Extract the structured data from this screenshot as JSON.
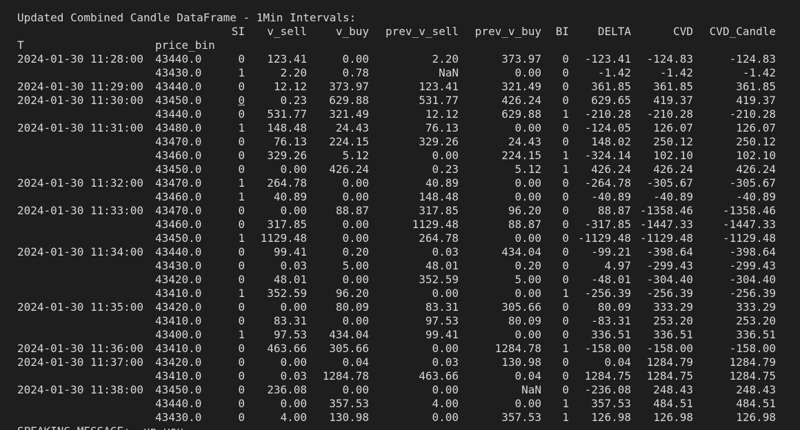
{
  "title": "Updated Combined Candle DataFrame - 1Min Intervals:",
  "columns": [
    "SI",
    "v_sell",
    "v_buy",
    "prev_v_sell",
    "prev_v_buy",
    "BI",
    "DELTA",
    "CVD",
    "CVD_Candle"
  ],
  "index_names": [
    "T",
    "price_bin"
  ],
  "rows": [
    {
      "t": "2024-01-30 11:28:00",
      "p": "43440.0",
      "si": "0",
      "vs": "123.41",
      "vb": "0.00",
      "pvs": "2.20",
      "pvb": "373.97",
      "bi": "0",
      "d": "-123.41",
      "cvd": "-124.83",
      "cc": "-124.83"
    },
    {
      "t": "",
      "p": "43430.0",
      "si": "1",
      "vs": "2.20",
      "vb": "0.78",
      "pvs": "NaN",
      "pvb": "0.00",
      "bi": "0",
      "d": "-1.42",
      "cvd": "-1.42",
      "cc": "-1.42"
    },
    {
      "t": "2024-01-30 11:29:00",
      "p": "43440.0",
      "si": "0",
      "vs": "12.12",
      "vb": "373.97",
      "pvs": "123.41",
      "pvb": "321.49",
      "bi": "0",
      "d": "361.85",
      "cvd": "361.85",
      "cc": "361.85"
    },
    {
      "t": "2024-01-30 11:30:00",
      "p": "43450.0",
      "si": "0",
      "vs": "0.23",
      "vb": "629.88",
      "pvs": "531.77",
      "pvb": "426.24",
      "bi": "0",
      "d": "629.65",
      "cvd": "419.37",
      "cc": "419.37"
    },
    {
      "t": "",
      "p": "43440.0",
      "si": "0",
      "vs": "531.77",
      "vb": "321.49",
      "pvs": "12.12",
      "pvb": "629.88",
      "bi": "1",
      "d": "-210.28",
      "cvd": "-210.28",
      "cc": "-210.28"
    },
    {
      "t": "2024-01-30 11:31:00",
      "p": "43480.0",
      "si": "1",
      "vs": "148.48",
      "vb": "24.43",
      "pvs": "76.13",
      "pvb": "0.00",
      "bi": "0",
      "d": "-124.05",
      "cvd": "126.07",
      "cc": "126.07"
    },
    {
      "t": "",
      "p": "43470.0",
      "si": "0",
      "vs": "76.13",
      "vb": "224.15",
      "pvs": "329.26",
      "pvb": "24.43",
      "bi": "0",
      "d": "148.02",
      "cvd": "250.12",
      "cc": "250.12"
    },
    {
      "t": "",
      "p": "43460.0",
      "si": "0",
      "vs": "329.26",
      "vb": "5.12",
      "pvs": "0.00",
      "pvb": "224.15",
      "bi": "1",
      "d": "-324.14",
      "cvd": "102.10",
      "cc": "102.10"
    },
    {
      "t": "",
      "p": "43450.0",
      "si": "0",
      "vs": "0.00",
      "vb": "426.24",
      "pvs": "0.23",
      "pvb": "5.12",
      "bi": "1",
      "d": "426.24",
      "cvd": "426.24",
      "cc": "426.24"
    },
    {
      "t": "2024-01-30 11:32:00",
      "p": "43470.0",
      "si": "1",
      "vs": "264.78",
      "vb": "0.00",
      "pvs": "40.89",
      "pvb": "0.00",
      "bi": "0",
      "d": "-264.78",
      "cvd": "-305.67",
      "cc": "-305.67"
    },
    {
      "t": "",
      "p": "43460.0",
      "si": "1",
      "vs": "40.89",
      "vb": "0.00",
      "pvs": "148.48",
      "pvb": "0.00",
      "bi": "0",
      "d": "-40.89",
      "cvd": "-40.89",
      "cc": "-40.89"
    },
    {
      "t": "2024-01-30 11:33:00",
      "p": "43470.0",
      "si": "0",
      "vs": "0.00",
      "vb": "88.87",
      "pvs": "317.85",
      "pvb": "96.20",
      "bi": "0",
      "d": "88.87",
      "cvd": "-1358.46",
      "cc": "-1358.46"
    },
    {
      "t": "",
      "p": "43460.0",
      "si": "0",
      "vs": "317.85",
      "vb": "0.00",
      "pvs": "1129.48",
      "pvb": "88.87",
      "bi": "0",
      "d": "-317.85",
      "cvd": "-1447.33",
      "cc": "-1447.33"
    },
    {
      "t": "",
      "p": "43450.0",
      "si": "1",
      "vs": "1129.48",
      "vb": "0.00",
      "pvs": "264.78",
      "pvb": "0.00",
      "bi": "0",
      "d": "-1129.48",
      "cvd": "-1129.48",
      "cc": "-1129.48"
    },
    {
      "t": "2024-01-30 11:34:00",
      "p": "43440.0",
      "si": "0",
      "vs": "99.41",
      "vb": "0.20",
      "pvs": "0.03",
      "pvb": "434.04",
      "bi": "0",
      "d": "-99.21",
      "cvd": "-398.64",
      "cc": "-398.64"
    },
    {
      "t": "",
      "p": "43430.0",
      "si": "0",
      "vs": "0.03",
      "vb": "5.00",
      "pvs": "48.01",
      "pvb": "0.20",
      "bi": "0",
      "d": "4.97",
      "cvd": "-299.43",
      "cc": "-299.43"
    },
    {
      "t": "",
      "p": "43420.0",
      "si": "0",
      "vs": "48.01",
      "vb": "0.00",
      "pvs": "352.59",
      "pvb": "5.00",
      "bi": "0",
      "d": "-48.01",
      "cvd": "-304.40",
      "cc": "-304.40"
    },
    {
      "t": "",
      "p": "43410.0",
      "si": "1",
      "vs": "352.59",
      "vb": "96.20",
      "pvs": "0.00",
      "pvb": "0.00",
      "bi": "1",
      "d": "-256.39",
      "cvd": "-256.39",
      "cc": "-256.39"
    },
    {
      "t": "2024-01-30 11:35:00",
      "p": "43420.0",
      "si": "0",
      "vs": "0.00",
      "vb": "80.09",
      "pvs": "83.31",
      "pvb": "305.66",
      "bi": "0",
      "d": "80.09",
      "cvd": "333.29",
      "cc": "333.29"
    },
    {
      "t": "",
      "p": "43410.0",
      "si": "0",
      "vs": "83.31",
      "vb": "0.00",
      "pvs": "97.53",
      "pvb": "80.09",
      "bi": "0",
      "d": "-83.31",
      "cvd": "253.20",
      "cc": "253.20"
    },
    {
      "t": "",
      "p": "43400.0",
      "si": "1",
      "vs": "97.53",
      "vb": "434.04",
      "pvs": "99.41",
      "pvb": "0.00",
      "bi": "0",
      "d": "336.51",
      "cvd": "336.51",
      "cc": "336.51"
    },
    {
      "t": "2024-01-30 11:36:00",
      "p": "43410.0",
      "si": "0",
      "vs": "463.66",
      "vb": "305.66",
      "pvs": "0.00",
      "pvb": "1284.78",
      "bi": "1",
      "d": "-158.00",
      "cvd": "-158.00",
      "cc": "-158.00"
    },
    {
      "t": "2024-01-30 11:37:00",
      "p": "43420.0",
      "si": "0",
      "vs": "0.00",
      "vb": "0.04",
      "pvs": "0.03",
      "pvb": "130.98",
      "bi": "0",
      "d": "0.04",
      "cvd": "1284.79",
      "cc": "1284.79"
    },
    {
      "t": "",
      "p": "43410.0",
      "si": "0",
      "vs": "0.03",
      "vb": "1284.78",
      "pvs": "463.66",
      "pvb": "0.04",
      "bi": "0",
      "d": "1284.75",
      "cvd": "1284.75",
      "cc": "1284.75"
    },
    {
      "t": "2024-01-30 11:38:00",
      "p": "43450.0",
      "si": "0",
      "vs": "236.08",
      "vb": "0.00",
      "pvs": "0.00",
      "pvb": "NaN",
      "bi": "0",
      "d": "-236.08",
      "cvd": "248.43",
      "cc": "248.43"
    },
    {
      "t": "",
      "p": "43440.0",
      "si": "0",
      "vs": "0.00",
      "vb": "357.53",
      "pvs": "4.00",
      "pvb": "0.00",
      "bi": "1",
      "d": "357.53",
      "cvd": "484.51",
      "cc": "484.51"
    },
    {
      "t": "",
      "p": "43430.0",
      "si": "0",
      "vs": "4.00",
      "vb": "130.98",
      "pvs": "0.00",
      "pvb": "357.53",
      "bi": "1",
      "d": "126.98",
      "cvd": "126.98",
      "cc": "126.98"
    }
  ],
  "footer": "SPEAKING MESSAGE:  up you",
  "colors": {
    "background": "#1e1e1e",
    "text": "#d8d8d8"
  }
}
